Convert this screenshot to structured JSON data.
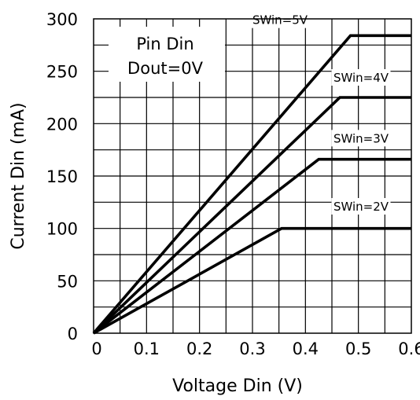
{
  "chart_data": {
    "type": "line",
    "title": "",
    "xlabel": "Voltage Din  (V)",
    "ylabel": "Current Din  (mA)",
    "xlim": [
      0,
      0.6
    ],
    "ylim": [
      0,
      300
    ],
    "x_ticks": [
      "0",
      "0.1",
      "0.2",
      "0.3",
      "0.4",
      "0.5",
      "0.6"
    ],
    "y_ticks": [
      "0",
      "50",
      "100",
      "150",
      "200",
      "250",
      "300"
    ],
    "grid": true,
    "annotation": [
      "Pin Din",
      "Dout=0V"
    ],
    "series": [
      {
        "name": "SWin=5V",
        "x": [
          0,
          0.485,
          0.6
        ],
        "y": [
          0,
          284,
          284
        ]
      },
      {
        "name": "SWin=4V",
        "x": [
          0,
          0.465,
          0.6
        ],
        "y": [
          0,
          225,
          225
        ]
      },
      {
        "name": "SWin=3V",
        "x": [
          0,
          0.425,
          0.6
        ],
        "y": [
          0,
          166,
          166
        ]
      },
      {
        "name": "SWin=2V",
        "x": [
          0,
          0.355,
          0.6
        ],
        "y": [
          0,
          100,
          100
        ]
      }
    ],
    "line_color": "#000000"
  }
}
